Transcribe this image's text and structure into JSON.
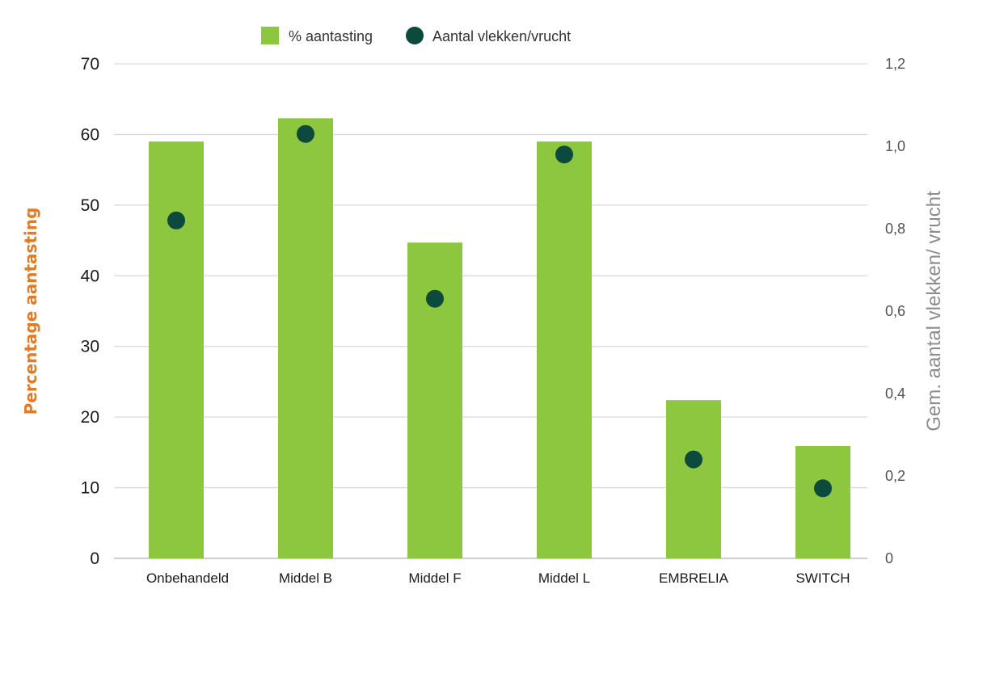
{
  "chart_data": {
    "type": "bar",
    "categories": [
      "Onbehandeld",
      "Middel B",
      "Middel F",
      "Middel L",
      "EMBRELIA",
      "SWITCH"
    ],
    "series": [
      {
        "name": "% aantasting",
        "type": "bar",
        "axis": "left",
        "color": "#8dc63f",
        "values": [
          59,
          62.3,
          44.7,
          59,
          22.4,
          15.9
        ]
      },
      {
        "name": "Aantal vlekken/vrucht",
        "type": "scatter",
        "axis": "right",
        "color": "#0b4a3c",
        "values": [
          0.82,
          1.03,
          0.63,
          0.98,
          0.24,
          0.17
        ]
      }
    ],
    "ylabel": "Percentage aantasting",
    "ylabel_color": "#e07b26",
    "ylabel_right": "Gem. aantal vlekken/ vrucht",
    "ylim": [
      0,
      70
    ],
    "ylim_right": [
      0,
      1.2
    ],
    "yticks": [
      "0",
      "10",
      "20",
      "30",
      "40",
      "50",
      "60",
      "70"
    ],
    "yticks_right": [
      "0",
      "0,2",
      "0,4",
      "0,6",
      "0,8",
      "1,0",
      "1,2"
    ],
    "grid": true,
    "legend_position": "top-center"
  }
}
